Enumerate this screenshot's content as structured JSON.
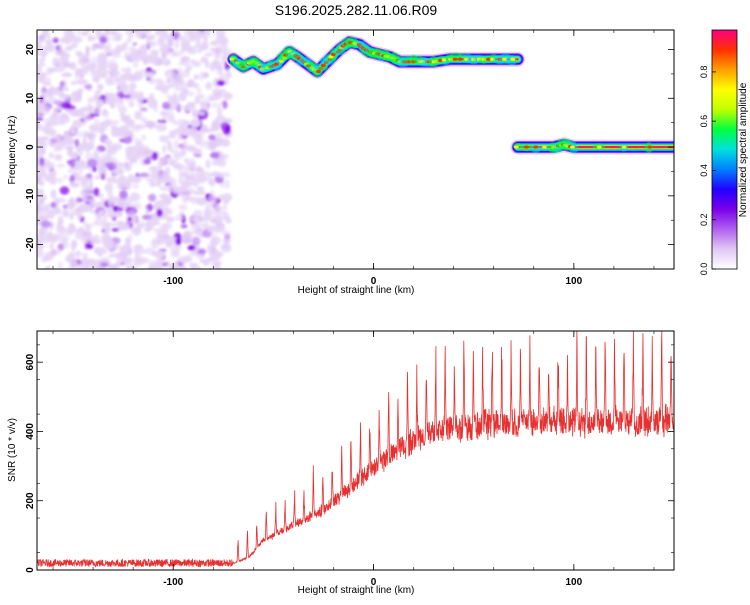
{
  "title": "S196.2025.282.11.06.R09",
  "chart_data": [
    {
      "type": "heatmap",
      "xlabel": "Height of straight line (km)",
      "ylabel": "Frequency (Hz)",
      "xlim": [
        -168,
        150
      ],
      "ylim": [
        -25,
        24
      ],
      "xticks": [
        -100,
        0,
        100
      ],
      "yticks": [
        -20,
        -10,
        0,
        10,
        20
      ],
      "colorbar": {
        "label": "Normalized spectral amplitude",
        "range": [
          0,
          0.97
        ],
        "ticks": [
          0.0,
          0.2,
          0.4,
          0.6,
          0.8
        ],
        "colormap": [
          "#ffffff",
          "#e0c8f4",
          "#b060f0",
          "#7a00e8",
          "#2000ff",
          "#0080ff",
          "#00e0e0",
          "#00ff40",
          "#c0ff00",
          "#ffff00",
          "#ffa000",
          "#ff3000",
          "#ff0080"
        ]
      },
      "noise_region": {
        "x": [
          -168,
          -72
        ],
        "y": [
          -25,
          24
        ],
        "amplitude": [
          0.03,
          0.2
        ]
      },
      "ridge_1": {
        "points": [
          [
            -70,
            18
          ],
          [
            -65,
            16.5
          ],
          [
            -60,
            17.5
          ],
          [
            -55,
            16
          ],
          [
            -48,
            17
          ],
          [
            -42,
            19.5
          ],
          [
            -38,
            18.5
          ],
          [
            -33,
            17
          ],
          [
            -28,
            15.5
          ],
          [
            -22,
            18
          ],
          [
            -17,
            20
          ],
          [
            -12,
            21.5
          ],
          [
            -7,
            21
          ],
          [
            -2,
            19.5
          ],
          [
            3,
            19
          ],
          [
            8,
            18.5
          ],
          [
            13,
            17.5
          ],
          [
            20,
            17.5
          ],
          [
            30,
            17.5
          ],
          [
            38,
            18
          ],
          [
            50,
            18
          ],
          [
            60,
            18
          ],
          [
            72,
            18
          ]
        ],
        "amplitude": 0.9
      },
      "ridge_2": {
        "points": [
          [
            72,
            0
          ],
          [
            90,
            0
          ],
          [
            95,
            0.5
          ],
          [
            100,
            0
          ],
          [
            150,
            0
          ]
        ],
        "amplitude": 0.9
      }
    },
    {
      "type": "line",
      "xlabel": "Height of straight line (km)",
      "ylabel": "SNR (10 * v/v)",
      "xlim": [
        -168,
        150
      ],
      "ylim": [
        0,
        690
      ],
      "xticks": [
        -100,
        0,
        100
      ],
      "yticks": [
        0,
        200,
        400,
        600
      ],
      "color": "#e83030",
      "envelope": [
        [
          -168,
          20
        ],
        [
          -70,
          20
        ],
        [
          -62,
          40
        ],
        [
          -55,
          90
        ],
        [
          -45,
          120
        ],
        [
          -35,
          150
        ],
        [
          -25,
          180
        ],
        [
          -15,
          230
        ],
        [
          -5,
          280
        ],
        [
          5,
          330
        ],
        [
          15,
          370
        ],
        [
          25,
          405
        ],
        [
          35,
          425
        ],
        [
          50,
          435
        ],
        [
          70,
          440
        ],
        [
          90,
          445
        ],
        [
          110,
          445
        ],
        [
          130,
          445
        ],
        [
          150,
          450
        ]
      ],
      "peak_spacing": 4.7,
      "peak_height": [
        0,
        650
      ]
    }
  ]
}
